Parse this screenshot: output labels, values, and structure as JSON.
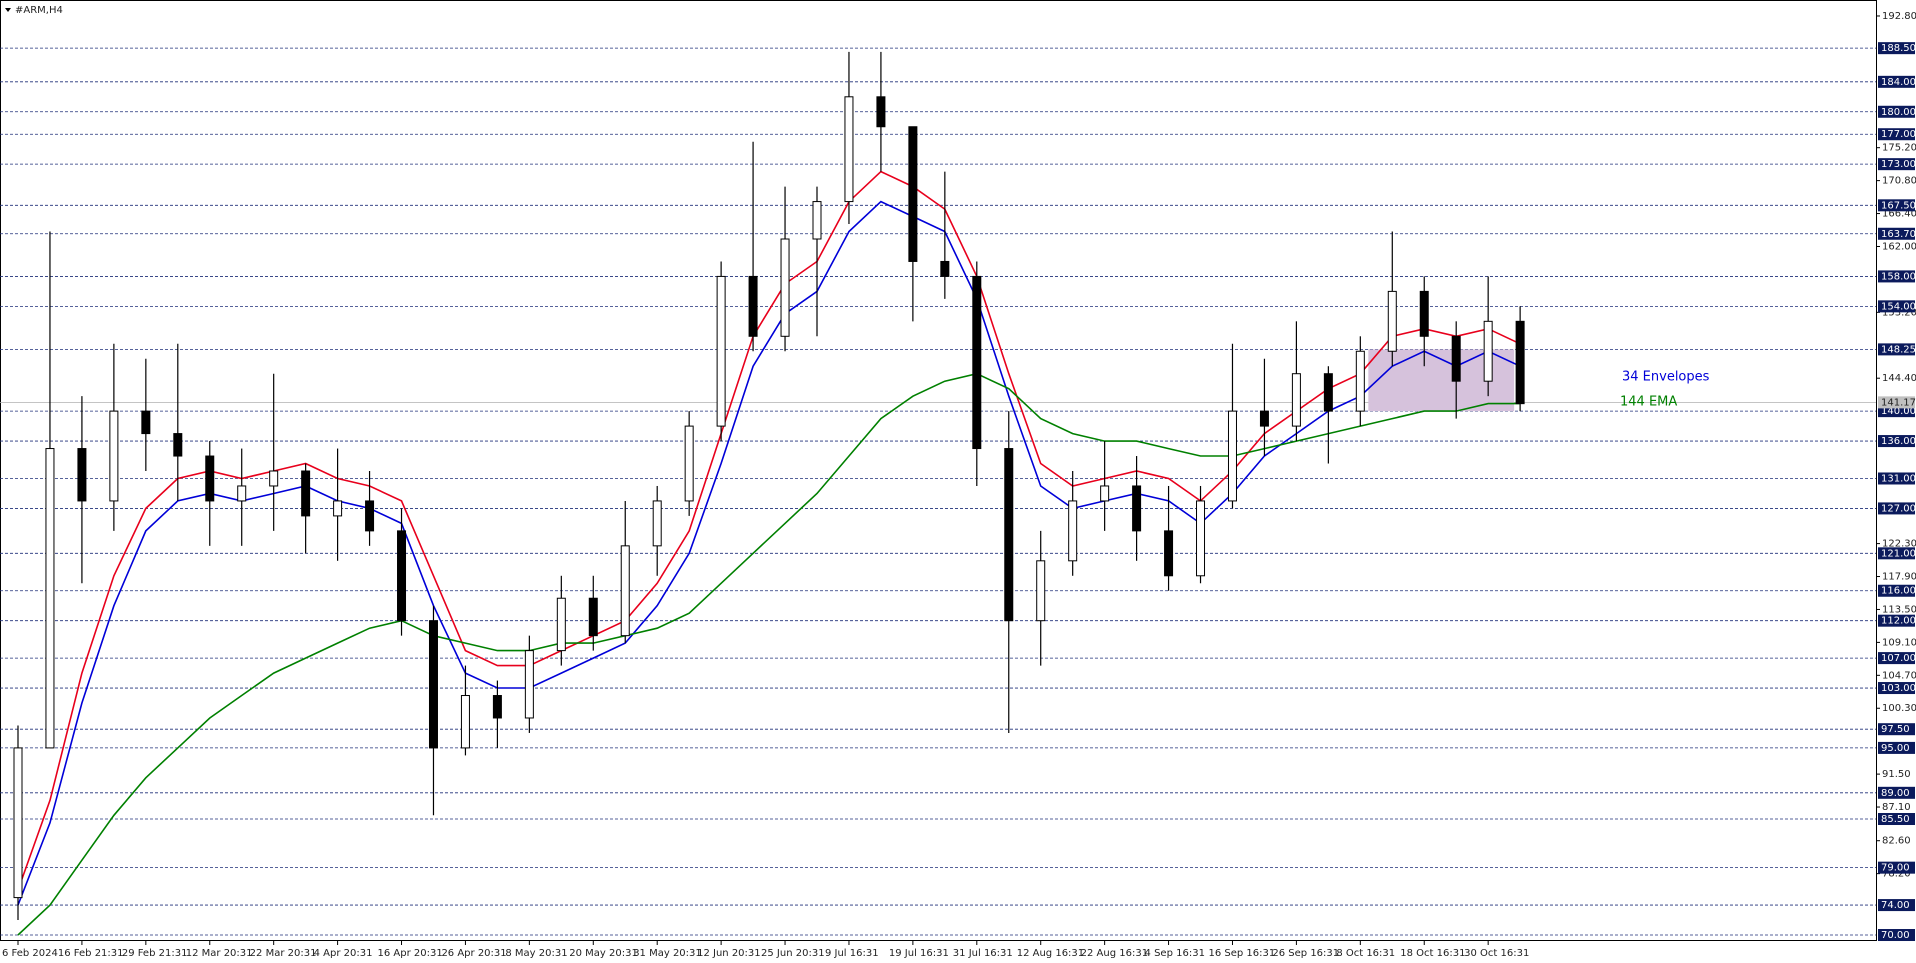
{
  "chart_data": {
    "type": "candlestick",
    "title": "#ARM,H4",
    "categories": [
      "6 Feb 2024",
      null,
      "16 Feb 21:31",
      null,
      "29 Feb 21:31",
      null,
      "12 Mar 20:31",
      null,
      "22 Mar 20:31",
      null,
      "4 Apr 20:31",
      null,
      "16 Apr 20:31",
      null,
      "26 Apr 20:31",
      null,
      "8 May 20:31",
      null,
      "20 May 20:31",
      null,
      "31 May 20:31",
      null,
      "12 Jun 20:31",
      null,
      "25 Jun 20:31",
      null,
      "9 Jul 16:31",
      null,
      "19 Jul 16:31",
      null,
      "31 Jul 16:31",
      null,
      "12 Aug 16:31",
      null,
      "22 Aug 16:31",
      null,
      "4 Sep 16:31",
      null,
      "16 Sep 16:31",
      null,
      "26 Sep 16:31",
      null,
      "8 Oct 16:31",
      null,
      "18 Oct 16:31",
      null,
      "30 Oct 16:31",
      null
    ],
    "open": [
      75,
      95,
      135,
      128,
      140,
      137,
      134,
      128,
      130,
      132,
      126,
      128,
      124,
      112,
      95,
      102,
      99,
      108,
      115,
      110,
      122,
      128,
      138,
      158,
      150,
      163,
      168,
      182,
      178,
      160,
      158,
      135,
      112,
      120,
      128,
      130,
      124,
      118,
      128,
      140,
      138,
      145,
      140,
      148,
      156,
      150,
      144,
      152
    ],
    "high": [
      98,
      164,
      142,
      149,
      147,
      149,
      136,
      135,
      145,
      133,
      135,
      132,
      127,
      114,
      106,
      104,
      110,
      118,
      118,
      128,
      130,
      140,
      160,
      176,
      170,
      170,
      188,
      188,
      178,
      172,
      160,
      140,
      124,
      132,
      136,
      134,
      130,
      130,
      149,
      147,
      152,
      146,
      150,
      164,
      158,
      152,
      158,
      154
    ],
    "low": [
      72,
      95,
      117,
      124,
      132,
      128,
      122,
      122,
      124,
      121,
      120,
      122,
      110,
      86,
      94,
      95,
      97,
      106,
      108,
      109,
      118,
      126,
      136,
      148,
      148,
      150,
      165,
      172,
      152,
      155,
      130,
      97,
      106,
      118,
      124,
      120,
      116,
      117,
      127,
      134,
      136,
      133,
      138,
      146,
      146,
      139,
      142,
      140
    ],
    "close": [
      95,
      135,
      128,
      140,
      137,
      134,
      128,
      130,
      132,
      126,
      128,
      124,
      112,
      95,
      102,
      99,
      108,
      115,
      110,
      122,
      128,
      138,
      158,
      150,
      163,
      168,
      182,
      178,
      160,
      158,
      135,
      112,
      120,
      128,
      130,
      124,
      118,
      128,
      140,
      138,
      145,
      140,
      148,
      156,
      150,
      144,
      152,
      141
    ],
    "candle_up_color": "#ffffff",
    "candle_down_color": "#000000",
    "envelopes": {
      "name": "34 Envelopes",
      "upper_color": "#e8001c",
      "lower_color": "#0000d8",
      "upper": [
        76,
        88,
        105,
        118,
        127,
        131,
        132,
        131,
        132,
        133,
        131,
        130,
        128,
        118,
        108,
        106,
        106,
        108,
        110,
        112,
        117,
        124,
        137,
        150,
        157,
        160,
        168,
        172,
        170,
        167,
        158,
        145,
        133,
        130,
        131,
        132,
        131,
        128,
        132,
        137,
        140,
        143,
        145,
        150,
        151,
        150,
        151,
        149
      ],
      "lower": [
        74,
        85,
        101,
        114,
        124,
        128,
        129,
        128,
        129,
        130,
        128,
        127,
        125,
        114,
        105,
        103,
        103,
        105,
        107,
        109,
        114,
        121,
        133,
        146,
        153,
        156,
        164,
        168,
        166,
        164,
        155,
        142,
        130,
        127,
        128,
        129,
        128,
        125,
        129,
        134,
        137,
        140,
        142,
        146,
        148,
        146,
        148,
        146
      ]
    },
    "series": [
      {
        "name": "144 EMA",
        "color": "#008000",
        "values": [
          70,
          74,
          80,
          86,
          91,
          95,
          99,
          102,
          105,
          107,
          109,
          111,
          112,
          110,
          109,
          108,
          108,
          109,
          109,
          110,
          111,
          113,
          117,
          121,
          125,
          129,
          134,
          139,
          142,
          144,
          145,
          143,
          139,
          137,
          136,
          136,
          135,
          134,
          134,
          135,
          136,
          137,
          138,
          139,
          140,
          140,
          141,
          141
        ]
      }
    ],
    "ylim": [
      69.2,
      194.4
    ],
    "yticks": [
      {
        "value": 192.8,
        "label": "192.80"
      },
      {
        "value": 175.2,
        "label": "175.20"
      },
      {
        "value": 170.8,
        "label": "170.80"
      },
      {
        "value": 166.4,
        "label": "166.40"
      },
      {
        "value": 162,
        "label": "162.00"
      },
      {
        "value": 153.2,
        "label": "153.20"
      },
      {
        "value": 144.4,
        "label": "144.40"
      },
      {
        "value": 122.3,
        "label": "122.30"
      },
      {
        "value": 117.9,
        "label": "117.90"
      },
      {
        "value": 113.5,
        "label": "113.50"
      },
      {
        "value": 109.1,
        "label": "109.10"
      },
      {
        "value": 104.7,
        "label": "104.70"
      },
      {
        "value": 100.3,
        "label": "100.30"
      },
      {
        "value": 91.5,
        "label": "91.50"
      },
      {
        "value": 87.1,
        "label": "87.10"
      },
      {
        "value": 82.6,
        "label": "82.60"
      },
      {
        "value": 78.2,
        "label": "78.20"
      }
    ],
    "levels": [
      {
        "value": 188.5,
        "label": "188.50"
      },
      {
        "value": 184,
        "label": "184.00"
      },
      {
        "value": 180,
        "label": "180.00"
      },
      {
        "value": 177,
        "label": "177.00"
      },
      {
        "value": 173,
        "label": "173.00"
      },
      {
        "value": 167.5,
        "label": "167.50"
      },
      {
        "value": 163.7,
        "label": "163.70"
      },
      {
        "value": 158,
        "label": "158.00"
      },
      {
        "value": 154,
        "label": "154.00"
      },
      {
        "value": 148.25,
        "label": "148.25"
      },
      {
        "value": 140,
        "label": "140.00"
      },
      {
        "value": 136,
        "label": "136.00"
      },
      {
        "value": 131,
        "label": "131.00"
      },
      {
        "value": 127,
        "label": "127.00"
      },
      {
        "value": 121,
        "label": "121.00"
      },
      {
        "value": 116,
        "label": "116.00"
      },
      {
        "value": 112,
        "label": "112.00"
      },
      {
        "value": 107,
        "label": "107.00"
      },
      {
        "value": 103,
        "label": "103.00"
      },
      {
        "value": 97.5,
        "label": "97.50"
      },
      {
        "value": 95,
        "label": "95.00"
      },
      {
        "value": 89,
        "label": "89.00"
      },
      {
        "value": 85.5,
        "label": "85.50"
      },
      {
        "value": 79,
        "label": "79.00"
      },
      {
        "value": 74,
        "label": "74.00"
      },
      {
        "value": 70,
        "label": "70.00"
      }
    ],
    "last_price": {
      "value": 141.17,
      "label": "141.17"
    }
  }
}
